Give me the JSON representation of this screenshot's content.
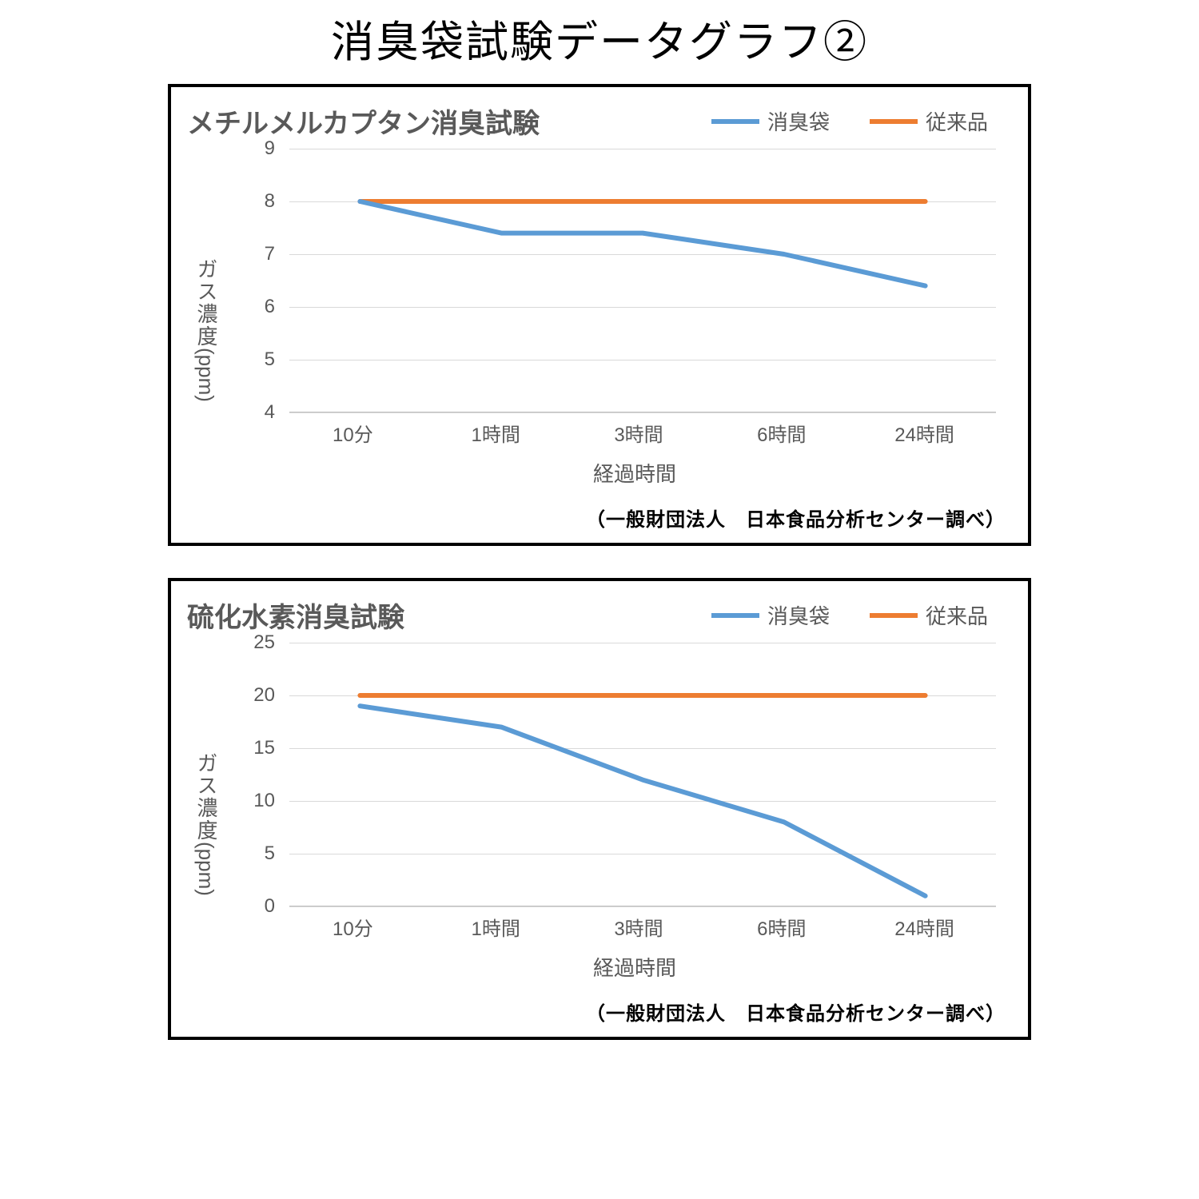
{
  "page_title": "消臭袋試験データグラフ②",
  "colors": {
    "series1": "#5b9bd5",
    "series2": "#ed7d31",
    "grid": "#d9d9d9",
    "axis": "#bfbfbf",
    "text": "#595959",
    "border": "#000000",
    "background": "#ffffff"
  },
  "line_width": 6,
  "legend_labels": {
    "s1": "消臭袋",
    "s2": "従来品"
  },
  "x_categories": [
    "10分",
    "1時間",
    "3時間",
    "6時間",
    "24時間"
  ],
  "x_axis_label": "経過時間",
  "y_axis_label_jp": "ガス濃度",
  "y_axis_label_unit": "(ppm)",
  "attribution": "（一般財団法人　日本食品分析センター調べ）",
  "chart1": {
    "type": "line",
    "title": "メチルメルカプタン消臭試験",
    "ymin": 4,
    "ymax": 9,
    "ytick_step": 1,
    "yticks": [
      4,
      5,
      6,
      7,
      8,
      9
    ],
    "series1_values": [
      8.0,
      7.4,
      7.4,
      7.0,
      6.4
    ],
    "series2_values": [
      8.0,
      8.0,
      8.0,
      8.0,
      8.0
    ]
  },
  "chart2": {
    "type": "line",
    "title": "硫化水素消臭試験",
    "ymin": 0,
    "ymax": 25,
    "ytick_step": 5,
    "yticks": [
      0,
      5,
      10,
      15,
      20,
      25
    ],
    "series1_values": [
      19.0,
      17.0,
      12.0,
      8.0,
      1.0
    ],
    "series2_values": [
      20.0,
      20.0,
      20.0,
      20.0,
      20.0
    ]
  }
}
